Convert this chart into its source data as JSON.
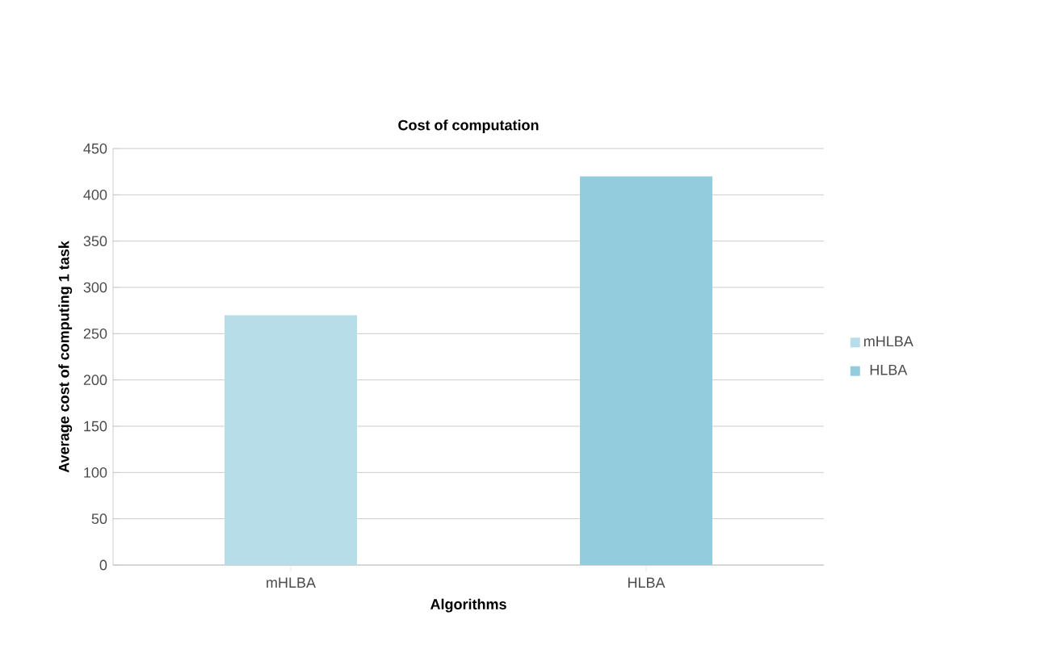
{
  "chart_data": {
    "type": "bar",
    "title": "Cost of computation",
    "xlabel": "Algorithms",
    "ylabel": "Average cost of computing 1 task",
    "categories": [
      "mHLBA",
      "HLBA"
    ],
    "series": [
      {
        "name": "mHLBA",
        "color": "#b7dde8",
        "values": [
          270,
          null
        ]
      },
      {
        "name": "HLBA",
        "color": "#93cddd",
        "values": [
          null,
          420
        ]
      }
    ],
    "ylim": [
      0,
      450
    ],
    "yticks": [
      0,
      50,
      100,
      150,
      200,
      250,
      300,
      350,
      400,
      450
    ],
    "grid": "y",
    "legend": "right"
  }
}
